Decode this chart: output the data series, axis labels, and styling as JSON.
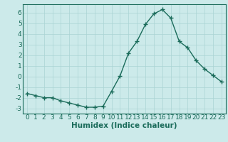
{
  "x": [
    0,
    1,
    2,
    3,
    4,
    5,
    6,
    7,
    8,
    9,
    10,
    11,
    12,
    13,
    14,
    15,
    16,
    17,
    18,
    19,
    20,
    21,
    22,
    23
  ],
  "y": [
    -1.6,
    -1.8,
    -2.0,
    -2.0,
    -2.3,
    -2.5,
    -2.7,
    -2.9,
    -2.9,
    -2.8,
    -1.4,
    0.05,
    2.2,
    3.3,
    4.9,
    5.9,
    6.3,
    5.5,
    3.3,
    2.7,
    1.5,
    0.7,
    0.1,
    -0.5
  ],
  "line_color": "#1a6b5a",
  "marker": "+",
  "markersize": 5,
  "linewidth": 1.0,
  "bg_color": "#cceaea",
  "grid_color": "#aad4d4",
  "xlabel": "Humidex (Indice chaleur)",
  "xlim": [
    -0.5,
    23.5
  ],
  "ylim": [
    -3.5,
    6.8
  ],
  "yticks": [
    -3,
    -2,
    -1,
    0,
    1,
    2,
    3,
    4,
    5,
    6
  ],
  "xticks": [
    0,
    1,
    2,
    3,
    4,
    5,
    6,
    7,
    8,
    9,
    10,
    11,
    12,
    13,
    14,
    15,
    16,
    17,
    18,
    19,
    20,
    21,
    22,
    23
  ],
  "tick_fontsize": 6.5,
  "xlabel_fontsize": 7.5
}
